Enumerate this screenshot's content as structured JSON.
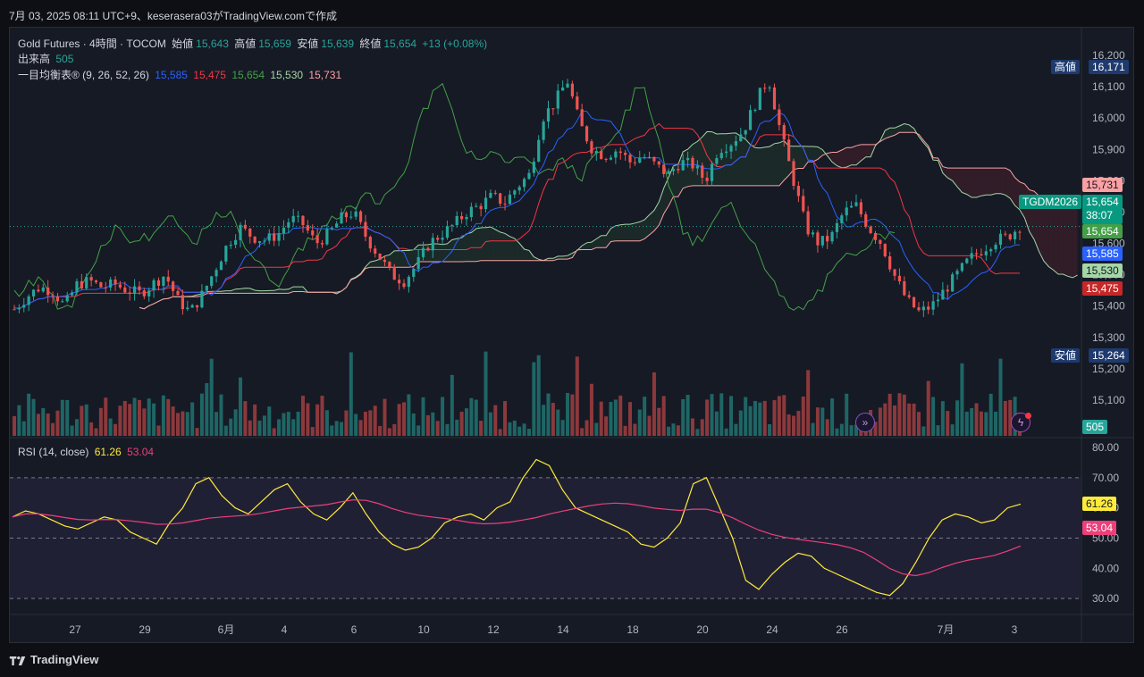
{
  "header": {
    "text": "7月 03, 2025 08:11 UTC+9、keserasera03がTradingView.comで作成"
  },
  "legend": {
    "symbol": "Gold Futures · 4時間 · TOCOM",
    "open_label": "始値",
    "open": "15,643",
    "high_label": "高値",
    "high": "15,659",
    "low_label": "安値",
    "low": "15,639",
    "close_label": "終値",
    "close": "15,654",
    "change": "+13 (+0.08%)",
    "volume_label": "出来高",
    "volume": "505",
    "ichimoku_label": "一目均衡表® (9, 26, 52, 26)",
    "ichimoku_values": [
      "15,585",
      "15,475",
      "15,654",
      "15,530",
      "15,731"
    ],
    "rsi_label": "RSI (14, close)",
    "rsi_value": "61.26",
    "rsi_ma_value": "53.04"
  },
  "price_axis": [
    "16,200",
    "16,100",
    "16,000",
    "15,900",
    "15,800",
    "15,700",
    "15,600",
    "15,500",
    "15,400",
    "15,300",
    "15,200",
    "15,100"
  ],
  "rsi_axis": [
    "80.00",
    "70.00",
    "60.00",
    "50.00",
    "40.00",
    "30.00"
  ],
  "time_axis": [
    "27",
    "29",
    "6月",
    "4",
    "6",
    "10",
    "12",
    "14",
    "18",
    "20",
    "24",
    "26",
    "7月",
    "3"
  ],
  "tags": {
    "high_label": "高値",
    "high_value": "16,171",
    "low_label": "安値",
    "low_value": "15,264",
    "symbol": "TGDM2026",
    "span_b": "15,731",
    "last": "15,654",
    "countdown": "38:07",
    "chikou": "15,654",
    "tenkan": "15,585",
    "span_a": "15,530",
    "kijun": "15,475",
    "volume": "505",
    "rsi": "61.26",
    "rsi_ma": "53.04"
  },
  "colors": {
    "up": "#26a69a",
    "down": "#ef5350",
    "tenkan": "#2962ff",
    "kijun": "#f23645",
    "chikou": "#43a047",
    "span_a": "#a5d6a7",
    "span_b": "#faa1a4",
    "rsi": "#ffeb3b",
    "rsi_ma": "#ec407a"
  },
  "footer": {
    "brand": "TradingView"
  },
  "chart_data": {
    "type": "candlestick",
    "timeframe": "4時間",
    "y_range": [
      15100,
      16200
    ],
    "rsi_range": [
      25,
      80
    ],
    "close_path": [
      15390,
      15430,
      15460,
      15450,
      15400,
      15470,
      15480,
      15460,
      15470,
      15450,
      15440,
      15470,
      15500,
      15420,
      15380,
      15440,
      15520,
      15600,
      15650,
      15620,
      15610,
      15630,
      15680,
      15660,
      15600,
      15630,
      15680,
      15700,
      15620,
      15560,
      15500,
      15480,
      15530,
      15600,
      15630,
      15660,
      15700,
      15720,
      15750,
      15730,
      15780,
      15820,
      16000,
      16050,
      16120,
      15980,
      15900,
      15880,
      15900,
      15860,
      15880,
      15850,
      15820,
      15860,
      15850,
      15800,
      15900,
      15920,
      15960,
      16050,
      16130,
      15950,
      15800,
      15650,
      15600,
      15620,
      15700,
      15720,
      15650,
      15600,
      15500,
      15420,
      15380,
      15400,
      15450,
      15500,
      15550,
      15580,
      15610,
      15620,
      15654
    ],
    "volume_scale": [
      0,
      500
    ],
    "rsi_path": [
      57,
      59,
      58,
      56,
      54,
      53,
      55,
      57,
      56,
      52,
      50,
      48,
      55,
      60,
      68,
      70,
      64,
      60,
      58,
      62,
      66,
      68,
      62,
      58,
      56,
      60,
      65,
      58,
      52,
      48,
      46,
      47,
      50,
      55,
      57,
      58,
      56,
      60,
      62,
      70,
      76,
      74,
      66,
      60,
      58,
      56,
      54,
      52,
      48,
      47,
      50,
      55,
      68,
      70,
      60,
      50,
      36,
      33,
      38,
      42,
      45,
      44,
      40,
      38,
      36,
      34,
      32,
      31,
      35,
      42,
      50,
      56,
      58,
      57,
      55,
      56,
      60,
      61.26
    ]
  }
}
